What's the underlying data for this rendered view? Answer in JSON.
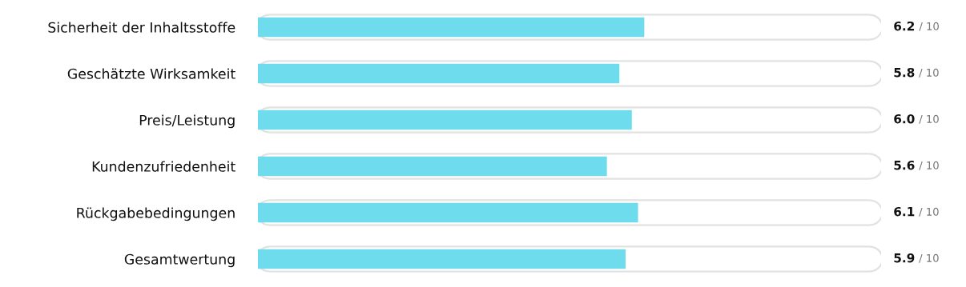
{
  "chart_data": {
    "type": "bar",
    "orientation": "horizontal",
    "categories": [
      "Sicherheit der Inhaltsstoffe",
      "Geschätzte Wirksamkeit",
      "Preis/Leistung",
      "Kundenzufriedenheit",
      "Rückgabebedingungen",
      "Gesamtwertung"
    ],
    "values": [
      6.2,
      5.8,
      6.0,
      5.6,
      6.1,
      5.9
    ],
    "color": "#6fdcee",
    "value_labels": [
      "6.2",
      "5.8",
      "6.0",
      "5.6",
      "6.1",
      "5.9"
    ],
    "annotations": [
      "/ 10",
      "/ 10",
      "/ 10",
      "/ 10",
      "/ 10",
      "/ 10"
    ],
    "xlim": [
      0,
      10
    ],
    "tick_labels": "y",
    "grid": false
  }
}
